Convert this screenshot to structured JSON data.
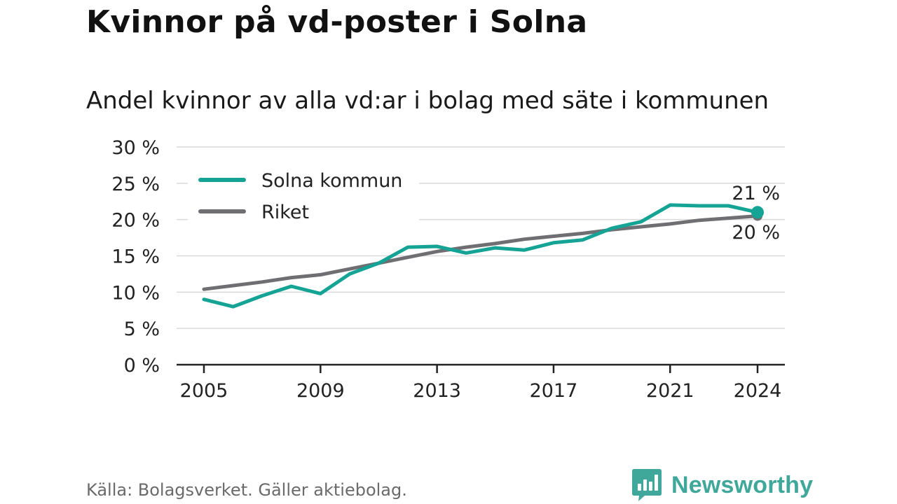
{
  "title": "Kvinnor på vd-poster i Solna",
  "subtitle": "Andel kvinnor av alla vd:ar i bolag med säte i kommunen",
  "source": "Källa: Bolagsverket. Gäller aktiebolag.",
  "brand": {
    "name": "Newsworthy",
    "icon": "newsworthy-logo-icon",
    "color": "#3fa89a"
  },
  "chart_data": {
    "type": "line",
    "x": [
      2005,
      2006,
      2007,
      2008,
      2009,
      2010,
      2011,
      2012,
      2013,
      2014,
      2015,
      2016,
      2017,
      2018,
      2019,
      2020,
      2021,
      2022,
      2023,
      2024
    ],
    "series": [
      {
        "name": "Solna kommun",
        "color": "#14a394",
        "values": [
          9.0,
          8.0,
          9.5,
          10.8,
          9.8,
          12.5,
          14.0,
          16.2,
          16.3,
          15.4,
          16.1,
          15.8,
          16.8,
          17.2,
          18.8,
          19.7,
          22.0,
          21.9,
          21.9,
          21.0
        ],
        "end_label": "21 %"
      },
      {
        "name": "Riket",
        "color": "#6f6e73",
        "values": [
          10.4,
          10.9,
          11.4,
          12.0,
          12.4,
          13.2,
          14.0,
          14.8,
          15.6,
          16.2,
          16.7,
          17.3,
          17.7,
          18.1,
          18.6,
          19.0,
          19.4,
          19.9,
          20.2,
          20.5
        ],
        "end_label": "20 %"
      }
    ],
    "y_ticks": [
      0,
      5,
      10,
      15,
      20,
      25,
      30
    ],
    "y_tick_labels": [
      "0 %",
      "5 %",
      "10 %",
      "15 %",
      "20 %",
      "25 %",
      "30 %"
    ],
    "x_ticks": [
      2005,
      2009,
      2013,
      2017,
      2021,
      2024
    ],
    "x_tick_labels": [
      "2005",
      "2009",
      "2013",
      "2017",
      "2021",
      "2024"
    ],
    "ylim": [
      0,
      30
    ],
    "xlim": [
      2005,
      2024
    ],
    "grid": true,
    "legend_position": "top-left"
  }
}
